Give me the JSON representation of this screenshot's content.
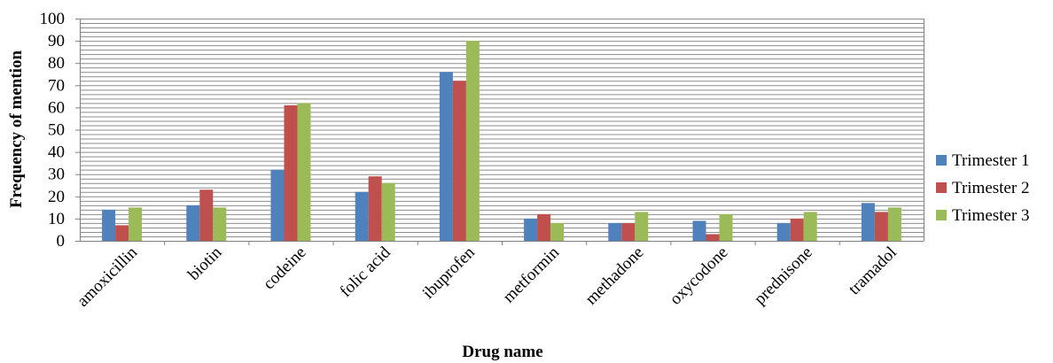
{
  "chart_data": {
    "type": "bar",
    "title": "",
    "xlabel": "Drug name",
    "ylabel": "Frequency of mention",
    "ylim": [
      0,
      100
    ],
    "ytick_step": 10,
    "minor_grid_step": 2,
    "grid": true,
    "legend_position": "right",
    "categories": [
      "amoxicillin",
      "biotin",
      "codeine",
      "folic acid",
      "ibuprofen",
      "metformin",
      "methadone",
      "oxycodone",
      "prednisone",
      "tramadol"
    ],
    "series": [
      {
        "name": "Trimester 1",
        "color": "#4F81BD",
        "values": [
          14,
          16,
          32,
          22,
          76,
          10,
          8,
          9,
          8,
          17
        ]
      },
      {
        "name": "Trimester 2",
        "color": "#C0504D",
        "values": [
          7,
          23,
          61,
          29,
          72,
          12,
          8,
          3,
          10,
          13
        ]
      },
      {
        "name": "Trimester 3",
        "color": "#9BBB59",
        "values": [
          15,
          15,
          62,
          26,
          90,
          8,
          13,
          12,
          13,
          15
        ]
      }
    ]
  }
}
